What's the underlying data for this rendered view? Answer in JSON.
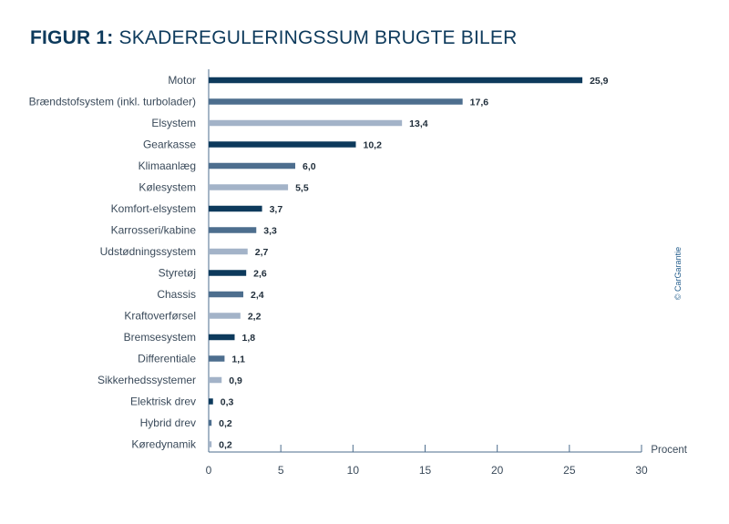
{
  "title": {
    "prefix": "FIGUR 1:",
    "text": "SKADEREGULERINGSSUM BRUGTE BILER"
  },
  "copyright": "© CarGarantie",
  "colors": {
    "dark": "#0d3a5c",
    "mid": "#4d6e8e",
    "light": "#a3b3c8",
    "axis": "#4d6e8e"
  },
  "chart_data": {
    "type": "bar",
    "orientation": "horizontal",
    "title": "FIGUR 1: SKADEREGULERINGSSUM BRUGTE BILER",
    "categories": [
      "Motor",
      "Brændstofsystem (inkl. turbolader)",
      "Elsystem",
      "Gearkasse",
      "Klimaanlæg",
      "Kølesystem",
      "Komfort-elsystem",
      "Karrosseri/kabine",
      "Udstødningssystem",
      "Styretøj",
      "Chassis",
      "Kraftoverførsel",
      "Bremsesystem",
      "Differentiale",
      "Sikkerhedssystemer",
      "Elektrisk drev",
      "Hybrid drev",
      "Køredynamik"
    ],
    "values": [
      25.9,
      17.6,
      13.4,
      10.2,
      6.0,
      5.5,
      3.7,
      3.3,
      2.7,
      2.6,
      2.4,
      2.2,
      1.8,
      1.1,
      0.9,
      0.3,
      0.2,
      0.2
    ],
    "value_labels": [
      "25,9",
      "17,6",
      "13,4",
      "10,2",
      "6,0",
      "5,5",
      "3,7",
      "3,3",
      "2,7",
      "2,6",
      "2,4",
      "2,2",
      "1,8",
      "1,1",
      "0,9",
      "0,3",
      "0,2",
      "0,2"
    ],
    "xlabel": "Procent",
    "ylabel": "",
    "xlim": [
      0,
      30
    ],
    "xticks": [
      0,
      5,
      10,
      15,
      20,
      25,
      30
    ],
    "grid": false,
    "legend": "none"
  }
}
